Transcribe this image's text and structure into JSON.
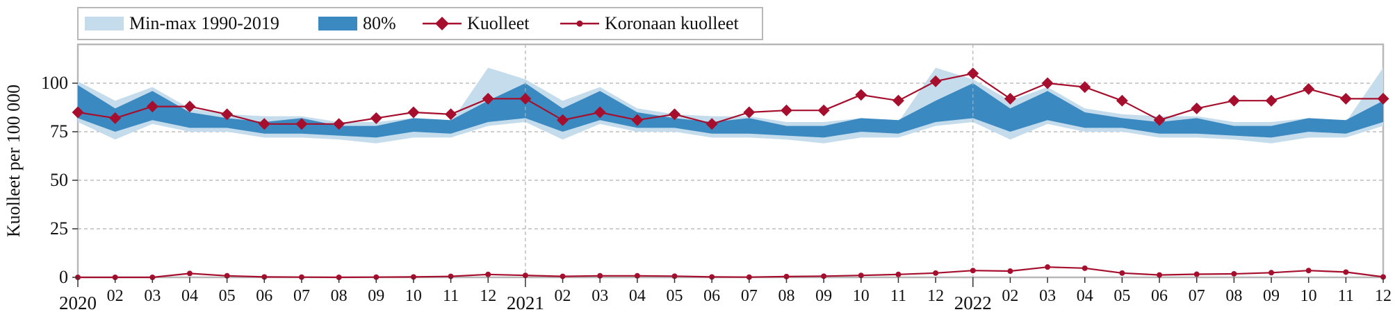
{
  "chart_data": {
    "type": "area",
    "title": "",
    "xlabel": "",
    "ylabel": "Kuolleet per 100 000",
    "ylim": [
      0,
      120
    ],
    "yticks": [
      0,
      25,
      50,
      75,
      100
    ],
    "grid": true,
    "legend_position": "top-left",
    "x_tick_labels": [
      "2020",
      "02",
      "03",
      "04",
      "05",
      "06",
      "07",
      "08",
      "09",
      "10",
      "11",
      "12",
      "2021",
      "02",
      "03",
      "04",
      "05",
      "06",
      "07",
      "08",
      "09",
      "10",
      "11",
      "12",
      "2022",
      "02",
      "03",
      "04",
      "05",
      "06",
      "07",
      "08",
      "09",
      "10",
      "11",
      "12"
    ],
    "legend": {
      "minmax": "Min-max 1990-2019",
      "band80": "80%",
      "deaths": "Kuolleet",
      "covid": "Koronaan kuolleet"
    },
    "colors": {
      "minmax": "#c5dcec",
      "band80": "#3a89c0",
      "deaths": "#a50f2d",
      "grid": "#b0b0b0"
    },
    "minmax_upper": [
      101,
      91,
      98,
      87,
      84,
      83,
      83,
      80,
      80,
      82,
      80,
      108,
      102,
      91,
      98,
      87,
      84,
      83,
      83,
      80,
      80,
      82,
      80,
      108,
      102,
      91,
      98,
      87,
      84,
      83,
      83,
      80,
      80,
      82,
      80,
      108
    ],
    "minmax_lower": [
      80,
      71,
      79,
      75,
      75,
      72,
      72,
      71,
      69,
      72,
      72,
      78,
      80,
      71,
      79,
      75,
      75,
      72,
      72,
      71,
      69,
      72,
      72,
      78,
      80,
      71,
      79,
      75,
      75,
      72,
      72,
      71,
      69,
      72,
      72,
      78
    ],
    "band80_upper": [
      99,
      87,
      96,
      85,
      82,
      80,
      82,
      78,
      78,
      82,
      81,
      91,
      100,
      87,
      96,
      85,
      82,
      80,
      82,
      78,
      78,
      82,
      81,
      91,
      100,
      87,
      96,
      85,
      82,
      80,
      82,
      78,
      78,
      82,
      81,
      91
    ],
    "band80_lower": [
      82,
      75,
      81,
      77,
      77,
      74,
      74,
      73,
      72,
      75,
      74,
      80,
      82,
      75,
      81,
      77,
      77,
      74,
      74,
      73,
      72,
      75,
      74,
      80,
      82,
      75,
      81,
      77,
      77,
      74,
      74,
      73,
      72,
      75,
      74,
      80
    ],
    "series": [
      {
        "name": "Kuolleet",
        "values": [
          85,
          82,
          88,
          88,
          84,
          79,
          79,
          79,
          82,
          85,
          84,
          92,
          92,
          81,
          85,
          81,
          84,
          79,
          85,
          86,
          86,
          94,
          91,
          101,
          105,
          92,
          100,
          98,
          91,
          81,
          87,
          91,
          91,
          97,
          92,
          92
        ]
      },
      {
        "name": "Koronaan kuolleet",
        "values": [
          0,
          0,
          0,
          2,
          0.8,
          0.2,
          0.1,
          0,
          0.1,
          0.2,
          0.5,
          1.5,
          1,
          0.5,
          0.8,
          0.8,
          0.6,
          0.2,
          0.1,
          0.4,
          0.6,
          1,
          1.5,
          2.2,
          3.5,
          3.2,
          5.3,
          4.7,
          2.2,
          1.2,
          1.6,
          1.8,
          2.4,
          3.5,
          2.7,
          0.2
        ]
      }
    ]
  }
}
